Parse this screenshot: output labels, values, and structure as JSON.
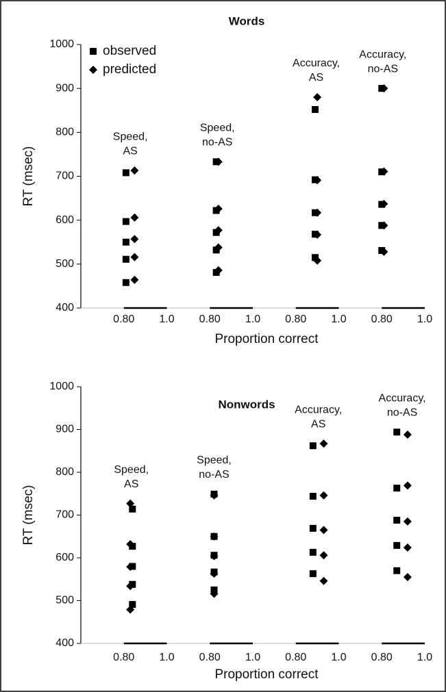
{
  "chart_data": [
    {
      "type": "scatter",
      "title": "Words",
      "xlabel": "Proportion correct",
      "ylabel": "RT (msec)",
      "ylim": [
        400,
        1000
      ],
      "yticks": [
        400,
        500,
        600,
        700,
        800,
        900,
        1000
      ],
      "xlim": [
        0.6,
        1.0
      ],
      "xticks": [
        {
          "value": 0.8,
          "label": "0.80"
        },
        {
          "value": 1.0,
          "label": "1.0"
        }
      ],
      "legend": "upper left",
      "groups": [
        {
          "label": [
            "Speed,",
            "AS"
          ],
          "series": [
            {
              "name": "observed",
              "marker": "square",
              "color": "#000000",
              "x": 0.81,
              "values": [
                708,
                597,
                550,
                511,
                458
              ]
            },
            {
              "name": "predicted",
              "marker": "diamond",
              "color": "#000000",
              "x": 0.85,
              "values": [
                713,
                606,
                557,
                516,
                464
              ]
            }
          ]
        },
        {
          "label": [
            "Speed,",
            "no-AS"
          ],
          "series": [
            {
              "name": "observed",
              "marker": "square",
              "color": "#000000",
              "x": 0.83,
              "values": [
                733,
                622,
                572,
                532,
                481
              ]
            },
            {
              "name": "predicted",
              "marker": "diamond",
              "color": "#000000",
              "x": 0.84,
              "values": [
                733,
                626,
                577,
                538,
                486
              ]
            }
          ]
        },
        {
          "label": [
            "Accuracy,",
            "AS"
          ],
          "series": [
            {
              "name": "observed",
              "marker": "square",
              "color": "#000000",
              "x": 0.89,
              "values": [
                852,
                692,
                617,
                568,
                515
              ]
            },
            {
              "name": "predicted",
              "marker": "diamond",
              "color": "#000000",
              "x": 0.9,
              "values": [
                880,
                691,
                617,
                567,
                508
              ]
            }
          ]
        },
        {
          "label": [
            "Accuracy,",
            "no-AS"
          ],
          "series": [
            {
              "name": "observed",
              "marker": "square",
              "color": "#000000",
              "x": 0.8,
              "values": [
                900,
                710,
                636,
                588,
                531
              ]
            },
            {
              "name": "predicted",
              "marker": "diamond",
              "color": "#000000",
              "x": 0.81,
              "values": [
                900,
                711,
                637,
                588,
                528
              ]
            }
          ]
        }
      ]
    },
    {
      "type": "scatter",
      "title": "Nonwords",
      "xlabel": "Proportion correct",
      "ylabel": "RT (msec)",
      "ylim": [
        400,
        1000
      ],
      "yticks": [
        400,
        500,
        600,
        700,
        800,
        900,
        1000
      ],
      "xlim": [
        0.6,
        1.0
      ],
      "xticks": [
        {
          "value": 0.8,
          "label": "0.80"
        },
        {
          "value": 1.0,
          "label": "1.0"
        }
      ],
      "groups": [
        {
          "label": [
            "Speed,",
            "AS"
          ],
          "series": [
            {
              "name": "observed",
              "marker": "square",
              "color": "#000000",
              "x": 0.84,
              "values": [
                714,
                627,
                580,
                538,
                491
              ]
            },
            {
              "name": "predicted",
              "marker": "diamond",
              "color": "#000000",
              "x": 0.83,
              "values": [
                727,
                632,
                579,
                534,
                479
              ]
            }
          ]
        },
        {
          "label": [
            "Speed,",
            "no-AS"
          ],
          "series": [
            {
              "name": "observed",
              "marker": "square",
              "color": "#000000",
              "x": 0.82,
              "values": [
                749,
                650,
                606,
                567,
                525
              ]
            },
            {
              "name": "predicted",
              "marker": "diamond",
              "color": "#000000",
              "x": 0.82,
              "values": [
                746,
                650,
                604,
                563,
                516
              ]
            }
          ]
        },
        {
          "label": [
            "Accuracy,",
            "AS"
          ],
          "series": [
            {
              "name": "observed",
              "marker": "square",
              "color": "#000000",
              "x": 0.88,
              "values": [
                862,
                744,
                669,
                613,
                563
              ]
            },
            {
              "name": "predicted",
              "marker": "diamond",
              "color": "#000000",
              "x": 0.93,
              "values": [
                867,
                746,
                665,
                606,
                546
              ]
            }
          ]
        },
        {
          "label": [
            "Accuracy,",
            "no-AS"
          ],
          "series": [
            {
              "name": "observed",
              "marker": "square",
              "color": "#000000",
              "x": 0.87,
              "values": [
                894,
                763,
                688,
                629,
                570
              ]
            },
            {
              "name": "predicted",
              "marker": "diamond",
              "color": "#000000",
              "x": 0.92,
              "values": [
                888,
                769,
                685,
                624,
                555
              ]
            }
          ]
        }
      ]
    }
  ]
}
